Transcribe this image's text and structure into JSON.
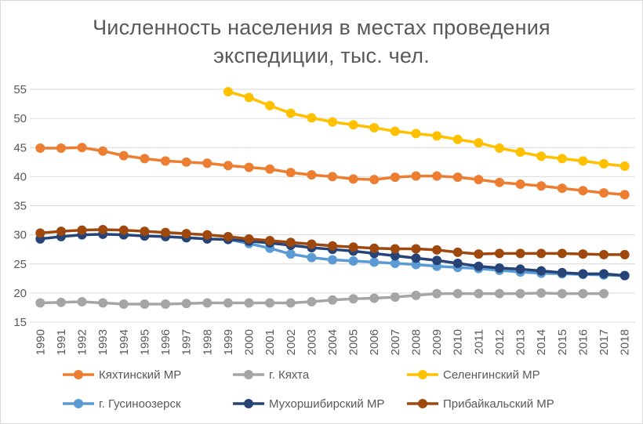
{
  "chart_data": {
    "type": "line",
    "title_lines": [
      "Численность населения в местах проведения",
      "экспедиции, тыс. чел."
    ],
    "xlabel": "",
    "ylabel": "",
    "ylim": [
      15,
      55
    ],
    "yticks": [
      15,
      20,
      25,
      30,
      35,
      40,
      45,
      50,
      55
    ],
    "x": [
      1990,
      1991,
      1992,
      1993,
      1994,
      1995,
      1996,
      1997,
      1998,
      1999,
      2000,
      2001,
      2002,
      2003,
      2004,
      2005,
      2006,
      2007,
      2008,
      2009,
      2010,
      2011,
      2012,
      2013,
      2014,
      2015,
      2016,
      2017,
      2018
    ],
    "grid": "horizontal",
    "legend_position": "bottom",
    "series": [
      {
        "name": "Кяхтинский МР",
        "color": "#ED7D31",
        "values": [
          44.9,
          44.9,
          45.0,
          44.4,
          43.6,
          43.1,
          42.7,
          42.5,
          42.3,
          41.9,
          41.6,
          41.3,
          40.7,
          40.3,
          40.0,
          39.6,
          39.5,
          39.9,
          40.1,
          40.1,
          39.9,
          39.5,
          39.0,
          38.7,
          38.4,
          38.0,
          37.6,
          37.2,
          36.9
        ]
      },
      {
        "name": "г. Кяхта",
        "color": "#A5A5A5",
        "values": [
          18.3,
          18.4,
          18.5,
          18.3,
          18.1,
          18.1,
          18.1,
          18.2,
          18.3,
          18.3,
          18.3,
          18.3,
          18.3,
          18.5,
          18.8,
          19.0,
          19.1,
          19.3,
          19.6,
          19.9,
          19.9,
          19.9,
          19.9,
          19.9,
          20.0,
          19.9,
          19.9,
          19.9,
          null
        ]
      },
      {
        "name": "Селенгинский МР",
        "color": "#FFC000",
        "values": [
          null,
          null,
          null,
          null,
          null,
          null,
          null,
          null,
          null,
          54.6,
          53.6,
          52.2,
          50.9,
          50.1,
          49.4,
          48.9,
          48.4,
          47.8,
          47.4,
          47.0,
          46.4,
          45.8,
          44.9,
          44.2,
          43.5,
          43.1,
          42.7,
          42.2,
          41.8
        ]
      },
      {
        "name": "г. Гусиноозерск",
        "color": "#5B9BD5",
        "values": [
          null,
          null,
          null,
          null,
          null,
          null,
          null,
          null,
          null,
          29.2,
          28.5,
          27.7,
          26.7,
          26.1,
          25.7,
          25.5,
          25.3,
          25.1,
          24.9,
          24.6,
          24.4,
          24.2,
          23.9,
          23.6,
          23.4,
          23.3,
          23.2,
          23.1,
          23.0
        ]
      },
      {
        "name": "Мухоршибирский МР",
        "color": "#264478",
        "values": [
          29.3,
          29.7,
          30.0,
          30.1,
          30.0,
          29.8,
          29.7,
          29.5,
          29.3,
          29.2,
          28.9,
          28.6,
          28.2,
          27.8,
          27.5,
          27.2,
          26.8,
          26.4,
          26.0,
          25.6,
          25.1,
          24.6,
          24.3,
          24.1,
          23.8,
          23.5,
          23.3,
          23.3,
          23.0
        ]
      },
      {
        "name": "Прибайкальский МР",
        "color": "#9E480E",
        "values": [
          30.3,
          30.6,
          30.8,
          30.9,
          30.8,
          30.6,
          30.4,
          30.2,
          30.0,
          29.7,
          29.3,
          29.0,
          28.7,
          28.4,
          28.1,
          27.9,
          27.7,
          27.6,
          27.6,
          27.4,
          27.0,
          26.7,
          26.8,
          26.8,
          26.8,
          26.8,
          26.7,
          26.6,
          26.6
        ]
      }
    ]
  }
}
